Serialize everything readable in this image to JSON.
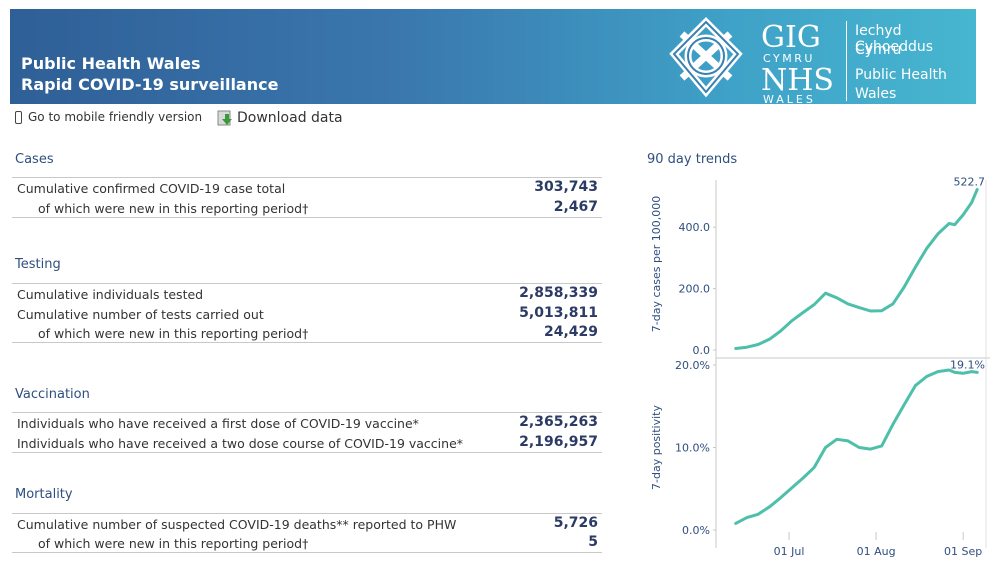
{
  "header": {
    "title_line1": "Public Health Wales",
    "title_line2": "Rapid COVID-19 surveillance",
    "logo": {
      "gig": "GIG",
      "cymru": "CYMRU",
      "nhs": "NHS",
      "wales": "WALES",
      "line1": "Iechyd Cyhoeddus",
      "line2": "Cymru",
      "line3": "Public Health",
      "line4": "Wales"
    }
  },
  "toolbar": {
    "mobile_label": "Go to mobile friendly version",
    "download_label": "Download data"
  },
  "sections": {
    "cases": {
      "title": "Cases",
      "rows": [
        {
          "label": "Cumulative confirmed COVID-19 case total",
          "value": "303,743"
        },
        {
          "label": "of which were new in this reporting period†",
          "value": "2,467"
        }
      ]
    },
    "testing": {
      "title": "Testing",
      "rows": [
        {
          "label": "Cumulative individuals tested",
          "value": "2,858,339"
        },
        {
          "label": "Cumulative number of tests carried out",
          "value": "5,013,811"
        },
        {
          "label": "of which were new in this reporting period†",
          "value": "24,429"
        }
      ]
    },
    "vaccination": {
      "title": "Vaccination",
      "rows": [
        {
          "label": "Individuals who have received a first dose of COVID-19 vaccine*",
          "value": "2,365,263"
        },
        {
          "label": "Individuals who have received a two dose course of COVID-19 vaccine*",
          "value": "2,196,957"
        }
      ]
    },
    "mortality": {
      "title": "Mortality",
      "rows": [
        {
          "label": "Cumulative number of suspected COVID-19 deaths** reported to PHW",
          "value": "5,726"
        },
        {
          "label": "of which were new in this reporting period†",
          "value": "5"
        }
      ]
    }
  },
  "trends": {
    "title": "90 day trends",
    "accent": "#4dbfaa"
  },
  "chart_data": [
    {
      "type": "line",
      "title": "",
      "xlabel": "",
      "ylabel": "7-day cases per 100,000",
      "x": [
        "2021-06-12",
        "2021-06-16",
        "2021-06-20",
        "2021-06-24",
        "2021-06-28",
        "2021-07-02",
        "2021-07-06",
        "2021-07-10",
        "2021-07-14",
        "2021-07-18",
        "2021-07-22",
        "2021-07-26",
        "2021-07-30",
        "2021-08-03",
        "2021-08-07",
        "2021-08-11",
        "2021-08-15",
        "2021-08-19",
        "2021-08-23",
        "2021-08-27",
        "2021-08-29",
        "2021-09-01",
        "2021-09-04",
        "2021-09-06"
      ],
      "y": [
        5,
        9,
        18,
        35,
        62,
        95,
        122,
        148,
        185,
        170,
        150,
        138,
        127,
        128,
        150,
        205,
        270,
        330,
        378,
        412,
        408,
        440,
        480,
        522.7
      ],
      "end_label": "522.7",
      "ylim": [
        0,
        560
      ],
      "yticks": [
        0,
        200,
        400
      ],
      "ytick_labels": [
        "0.0",
        "200.0",
        "400.0"
      ],
      "grid": false
    },
    {
      "type": "line",
      "title": "",
      "xlabel": "",
      "ylabel": "7-day positivity",
      "x": [
        "2021-06-12",
        "2021-06-16",
        "2021-06-20",
        "2021-06-24",
        "2021-06-28",
        "2021-07-02",
        "2021-07-06",
        "2021-07-10",
        "2021-07-14",
        "2021-07-18",
        "2021-07-22",
        "2021-07-26",
        "2021-07-30",
        "2021-08-03",
        "2021-08-07",
        "2021-08-11",
        "2021-08-15",
        "2021-08-19",
        "2021-08-23",
        "2021-08-27",
        "2021-08-29",
        "2021-09-01",
        "2021-09-04",
        "2021-09-06"
      ],
      "y": [
        0.8,
        1.5,
        1.9,
        2.8,
        3.9,
        5.1,
        6.3,
        7.6,
        10.0,
        11.0,
        10.8,
        10.0,
        9.8,
        10.2,
        12.8,
        15.2,
        17.5,
        18.6,
        19.2,
        19.4,
        19.1,
        19.0,
        19.2,
        19.1
      ],
      "end_label": "19.1%",
      "ylim": [
        0,
        20
      ],
      "yticks": [
        0,
        10,
        20
      ],
      "ytick_labels": [
        "0.0%",
        "10.0%",
        "20.0%"
      ],
      "xticks": [
        "2021-07-01",
        "2021-08-01",
        "2021-09-01"
      ],
      "xtick_labels": [
        "01 Jul",
        "01 Aug",
        "01 Sep"
      ],
      "grid": false
    }
  ]
}
